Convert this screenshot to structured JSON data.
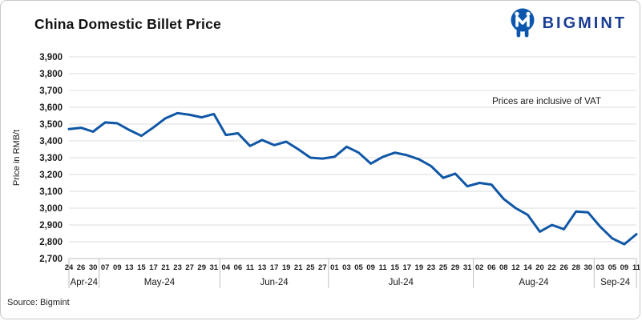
{
  "header": {
    "title": "China Domestic Billet Price"
  },
  "logo": {
    "text": "BIGMINT",
    "icon": "bigmint-people-m-icon",
    "text_color": "#1a3e94",
    "icon_color": "#0c57ad"
  },
  "footer": {
    "source": "Source: Bigmint"
  },
  "chart_data": {
    "type": "line",
    "title": "China Domestic Billet Price",
    "ylabel": "Price in RMB/t",
    "ylim": [
      2700,
      3900
    ],
    "ytick_step": 100,
    "ytick_labels": [
      "2,700",
      "2,800",
      "2,900",
      "3,000",
      "3,100",
      "3,200",
      "3,300",
      "3,400",
      "3,500",
      "3,600",
      "3,700",
      "3,800",
      "3,900"
    ],
    "grid": "horizontal-only",
    "legend": "none",
    "annotation": "Prices are inclusive of VAT",
    "line_color": "#1057a5",
    "grid_color": "#dcdcdc",
    "axis_color": "#bfbfbf",
    "month_groups": [
      "Apr-24",
      "May-24",
      "Jun-24",
      "Jul-24",
      "Aug-24",
      "Sep-24"
    ],
    "series_name": "China Domestic Billet Price (RMB/t, inclusive of VAT)",
    "points": [
      {
        "month": "Apr-24",
        "day": "24",
        "value": 3470
      },
      {
        "month": "Apr-24",
        "day": "26",
        "value": 3478
      },
      {
        "month": "Apr-24",
        "day": "30",
        "value": 3455
      },
      {
        "month": "May-24",
        "day": "07",
        "value": 3510
      },
      {
        "month": "May-24",
        "day": "09",
        "value": 3505
      },
      {
        "month": "May-24",
        "day": "13",
        "value": 3465
      },
      {
        "month": "May-24",
        "day": "15",
        "value": 3430
      },
      {
        "month": "May-24",
        "day": "17",
        "value": 3480
      },
      {
        "month": "May-24",
        "day": "21",
        "value": 3535
      },
      {
        "month": "May-24",
        "day": "23",
        "value": 3565
      },
      {
        "month": "May-24",
        "day": "27",
        "value": 3555
      },
      {
        "month": "May-24",
        "day": "29",
        "value": 3540
      },
      {
        "month": "May-24",
        "day": "31",
        "value": 3560
      },
      {
        "month": "Jun-24",
        "day": "04",
        "value": 3435
      },
      {
        "month": "Jun-24",
        "day": "06",
        "value": 3445
      },
      {
        "month": "Jun-24",
        "day": "11",
        "value": 3370
      },
      {
        "month": "Jun-24",
        "day": "13",
        "value": 3405
      },
      {
        "month": "Jun-24",
        "day": "17",
        "value": 3375
      },
      {
        "month": "Jun-24",
        "day": "19",
        "value": 3395
      },
      {
        "month": "Jun-24",
        "day": "21",
        "value": 3350
      },
      {
        "month": "Jun-24",
        "day": "25",
        "value": 3300
      },
      {
        "month": "Jun-24",
        "day": "27",
        "value": 3295
      },
      {
        "month": "Jul-24",
        "day": "01",
        "value": 3305
      },
      {
        "month": "Jul-24",
        "day": "03",
        "value": 3365
      },
      {
        "month": "Jul-24",
        "day": "05",
        "value": 3330
      },
      {
        "month": "Jul-24",
        "day": "09",
        "value": 3265
      },
      {
        "month": "Jul-24",
        "day": "11",
        "value": 3305
      },
      {
        "month": "Jul-24",
        "day": "15",
        "value": 3330
      },
      {
        "month": "Jul-24",
        "day": "17",
        "value": 3315
      },
      {
        "month": "Jul-24",
        "day": "19",
        "value": 3290
      },
      {
        "month": "Jul-24",
        "day": "23",
        "value": 3250
      },
      {
        "month": "Jul-24",
        "day": "25",
        "value": 3180
      },
      {
        "month": "Jul-24",
        "day": "29",
        "value": 3205
      },
      {
        "month": "Jul-24",
        "day": "31",
        "value": 3130
      },
      {
        "month": "Aug-24",
        "day": "02",
        "value": 3150
      },
      {
        "month": "Aug-24",
        "day": "06",
        "value": 3140
      },
      {
        "month": "Aug-24",
        "day": "08",
        "value": 3055
      },
      {
        "month": "Aug-24",
        "day": "12",
        "value": 3000
      },
      {
        "month": "Aug-24",
        "day": "14",
        "value": 2960
      },
      {
        "month": "Aug-24",
        "day": "20",
        "value": 2860
      },
      {
        "month": "Aug-24",
        "day": "22",
        "value": 2900
      },
      {
        "month": "Aug-24",
        "day": "26",
        "value": 2875
      },
      {
        "month": "Aug-24",
        "day": "28",
        "value": 2980
      },
      {
        "month": "Aug-24",
        "day": "30",
        "value": 2975
      },
      {
        "month": "Sep-24",
        "day": "03",
        "value": 2890
      },
      {
        "month": "Sep-24",
        "day": "05",
        "value": 2820
      },
      {
        "month": "Sep-24",
        "day": "09",
        "value": 2785
      },
      {
        "month": "Sep-24",
        "day": "11",
        "value": 2845
      }
    ]
  }
}
